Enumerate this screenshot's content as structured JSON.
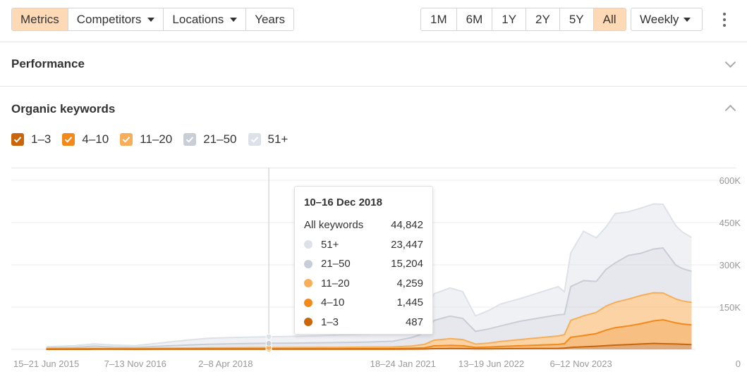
{
  "toolbar": {
    "tabs": [
      {
        "label": "Metrics",
        "active": true,
        "dropdown": false
      },
      {
        "label": "Competitors",
        "active": false,
        "dropdown": true
      },
      {
        "label": "Locations",
        "active": false,
        "dropdown": true
      },
      {
        "label": "Years",
        "active": false,
        "dropdown": false
      }
    ],
    "ranges": [
      {
        "label": "1M",
        "active": false
      },
      {
        "label": "6M",
        "active": false
      },
      {
        "label": "1Y",
        "active": false
      },
      {
        "label": "2Y",
        "active": false
      },
      {
        "label": "5Y",
        "active": false
      },
      {
        "label": "All",
        "active": true
      }
    ],
    "interval": "Weekly",
    "more_icon": "kebab-menu-icon"
  },
  "sections": {
    "performance": {
      "title": "Performance",
      "expanded": false
    },
    "organic": {
      "title": "Organic keywords",
      "expanded": true
    }
  },
  "filters": [
    {
      "label": "1–3",
      "color": "#c9650b",
      "checked": true
    },
    {
      "label": "4–10",
      "color": "#f28a1b",
      "checked": true
    },
    {
      "label": "11–20",
      "color": "#f7ae5b",
      "checked": true
    },
    {
      "label": "21–50",
      "color": "#c8cdd6",
      "checked": true
    },
    {
      "label": "51+",
      "color": "#dde1e8",
      "checked": true
    }
  ],
  "tooltip": {
    "title": "10–16 Dec 2018",
    "total_label": "All keywords",
    "total_value": "44,842",
    "rows": [
      {
        "label": "51+",
        "value": "23,447",
        "color": "#dde1e8"
      },
      {
        "label": "21–50",
        "value": "15,204",
        "color": "#c8cdd6"
      },
      {
        "label": "11–20",
        "value": "4,259",
        "color": "#f7ae5b"
      },
      {
        "label": "4–10",
        "value": "1,445",
        "color": "#f28a1b"
      },
      {
        "label": "1–3",
        "value": "487",
        "color": "#c9650b"
      }
    ]
  },
  "chart_data": {
    "type": "area",
    "stacked": true,
    "x_ticks": [
      "15–21 Jun 2015",
      "7–13 Nov 2016",
      "2–8 Apr 2018",
      "18–24 Jan 2021",
      "13–19 Jun 2022",
      "6–12 Nov 2023"
    ],
    "y_ticks": [
      "600K",
      "450K",
      "300K",
      "150K",
      "0"
    ],
    "ylim": [
      0,
      600000
    ],
    "grid": true,
    "x": [
      2015.45,
      2015.9,
      2016.2,
      2016.5,
      2016.85,
      2017.3,
      2017.7,
      2018.0,
      2018.3,
      2018.6,
      2018.95,
      2019.3,
      2019.7,
      2020.1,
      2020.5,
      2020.9,
      2021.2,
      2021.4,
      2021.55,
      2021.8,
      2022.0,
      2022.2,
      2022.4,
      2022.6,
      2022.9,
      2023.2,
      2023.5,
      2023.6,
      2023.7,
      2023.9,
      2024.1,
      2024.25,
      2024.4,
      2024.6,
      2024.8,
      2025.0,
      2025.15,
      2025.35,
      2025.45,
      2025.6
    ],
    "series": [
      {
        "name": "1–3",
        "color": "#c9650b",
        "values": [
          300,
          350,
          400,
          380,
          360,
          400,
          420,
          450,
          470,
          480,
          487,
          520,
          560,
          600,
          650,
          700,
          900,
          1200,
          2500,
          3000,
          2800,
          1800,
          1900,
          2300,
          2700,
          3200,
          3600,
          4200,
          7000,
          9000,
          11000,
          13000,
          15000,
          17000,
          19000,
          21000,
          20000,
          19000,
          18000,
          17000
        ]
      },
      {
        "name": "4–10",
        "color": "#f28a1b",
        "values": [
          800,
          900,
          1000,
          950,
          900,
          1100,
          1200,
          1300,
          1350,
          1400,
          1445,
          1500,
          1600,
          1700,
          1800,
          2000,
          3000,
          4500,
          10000,
          11000,
          10000,
          5000,
          6000,
          8000,
          10000,
          12000,
          14000,
          16000,
          36000,
          40000,
          45000,
          55000,
          62000,
          66000,
          72000,
          80000,
          85000,
          75000,
          72000,
          70000
        ]
      },
      {
        "name": "11–20",
        "color": "#f7ae5b",
        "values": [
          1500,
          1800,
          2000,
          1900,
          1800,
          2500,
          3000,
          3500,
          3800,
          4000,
          4259,
          4500,
          4800,
          5000,
          5500,
          6000,
          8000,
          12000,
          20000,
          24000,
          22000,
          12000,
          14000,
          18000,
          22000,
          26000,
          30000,
          32000,
          60000,
          70000,
          75000,
          85000,
          90000,
          95000,
          100000,
          100000,
          95000,
          85000,
          82000,
          80000
        ]
      },
      {
        "name": "21–50",
        "color": "#c8cdd6",
        "values": [
          3000,
          4000,
          8000,
          5000,
          4000,
          8000,
          11000,
          13000,
          14000,
          14500,
          15204,
          15500,
          16000,
          17000,
          18000,
          20000,
          30000,
          40000,
          70000,
          80000,
          75000,
          45000,
          50000,
          55000,
          65000,
          70000,
          75000,
          72000,
          120000,
          125000,
          110000,
          130000,
          140000,
          155000,
          150000,
          155000,
          160000,
          120000,
          115000,
          110000
        ]
      },
      {
        "name": "51+",
        "color": "#dde1e8",
        "values": [
          4000,
          6000,
          8000,
          7000,
          6000,
          12000,
          18000,
          21000,
          22000,
          22800,
          23447,
          24000,
          25000,
          27000,
          28000,
          30000,
          45000,
          60000,
          95000,
          100000,
          95000,
          55000,
          65000,
          78000,
          80000,
          90000,
          100000,
          80000,
          120000,
          175000,
          155000,
          150000,
          175000,
          155000,
          160000,
          160000,
          155000,
          140000,
          130000,
          120000
        ]
      }
    ],
    "hover_x": 2018.95
  }
}
